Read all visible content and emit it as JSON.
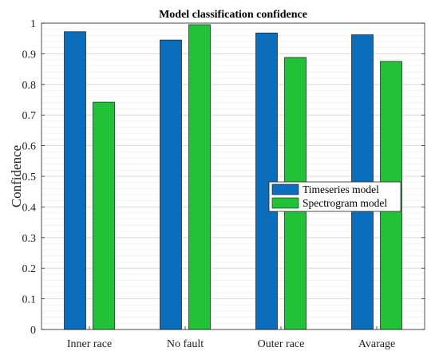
{
  "chart_data": {
    "type": "bar",
    "title": "Model classification confidence",
    "xlabel": "",
    "ylabel": "Confidence",
    "categories": [
      "Inner race",
      "No fault",
      "Outer race",
      "Avarage"
    ],
    "ylim": [
      0,
      1
    ],
    "yticks": [
      0,
      0.1,
      0.2,
      0.3,
      0.4,
      0.5,
      0.6,
      0.7,
      0.8,
      0.9,
      1
    ],
    "ytick_labels": [
      "0",
      "0.1",
      "0.2",
      "0.3",
      "0.4",
      "0.5",
      "0.6",
      "0.7",
      "0.8",
      "0.9",
      "1"
    ],
    "grid": true,
    "minor_grid": true,
    "legend_placement": "center-right",
    "series": [
      {
        "name": "Timeseries model",
        "color": "#0a6ebd",
        "values": [
          0.972,
          0.945,
          0.968,
          0.962
        ]
      },
      {
        "name": "Spectrogram model",
        "color": "#22c238",
        "values": [
          0.742,
          0.995,
          0.888,
          0.875
        ]
      }
    ]
  }
}
